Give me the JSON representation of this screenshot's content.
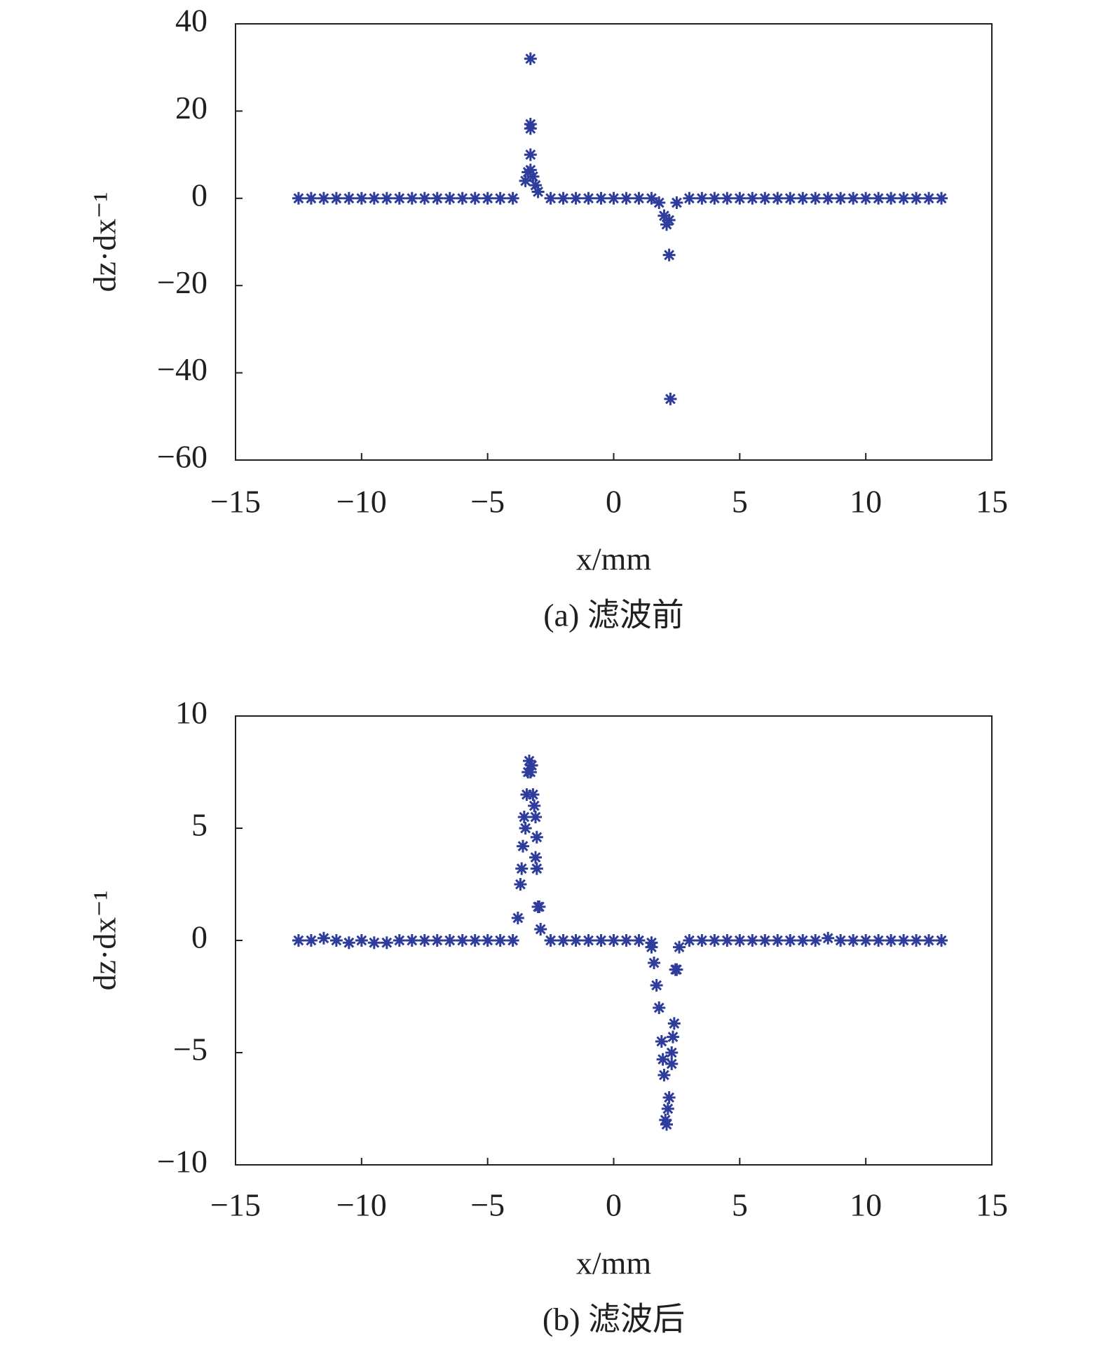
{
  "chart_data": [
    {
      "type": "scatter",
      "caption": "(a) 滤波前",
      "xlabel": "x/mm",
      "ylabel": "dz·dx⁻¹",
      "color": "#2e3c9c",
      "marker": "asterisk",
      "x": [
        -12.5,
        -12,
        -11.5,
        -11,
        -10.5,
        -10,
        -9.5,
        -9,
        -8.5,
        -8,
        -7.5,
        -7,
        -6.5,
        -6,
        -5.5,
        -5,
        -4.5,
        -4,
        -3.5,
        -3,
        -2.5,
        -2,
        -1.5,
        -1,
        -0.5,
        0,
        0.5,
        1,
        1.5,
        2,
        2.5,
        3,
        3.5,
        4,
        4.5,
        5,
        5.5,
        6,
        6.5,
        7,
        7.5,
        8,
        8.5,
        9,
        9.5,
        10,
        10.5,
        11,
        11.5,
        12,
        12.5,
        13,
        -3.4,
        -3.3,
        -3.2,
        -3.3,
        -3.3,
        -3.3,
        -3.3,
        -3.1,
        1.8,
        2.1,
        2.2,
        2.2,
        2.25
      ],
      "values": [
        0,
        0,
        0,
        0,
        0,
        0,
        0,
        0,
        0,
        0,
        0,
        0,
        0,
        0,
        0,
        0,
        0,
        0,
        4,
        1.5,
        0,
        0,
        0,
        0,
        0,
        0,
        0,
        0,
        0,
        -4,
        -1,
        0,
        0,
        0,
        0,
        0,
        0,
        0,
        0,
        0,
        0,
        0,
        0,
        0,
        0,
        0,
        0,
        0,
        0,
        0,
        0,
        0,
        6,
        6.5,
        5,
        10,
        17,
        16,
        32,
        3,
        -1,
        -6,
        -5,
        -13,
        -46
      ],
      "xlim": [
        -15,
        15
      ],
      "xticks": [
        {
          "value": -15,
          "label": "−15"
        },
        {
          "value": -10,
          "label": "−10"
        },
        {
          "value": -5,
          "label": "−5"
        },
        0,
        5,
        10,
        15
      ],
      "ylim": [
        -60,
        40
      ],
      "yticks": [
        {
          "value": -60,
          "label": "−60"
        },
        {
          "value": -40,
          "label": "−40"
        },
        {
          "value": -20,
          "label": "−20"
        },
        0,
        20,
        40
      ]
    },
    {
      "type": "scatter",
      "caption": "(b) 滤波后",
      "xlabel": "x/mm",
      "ylabel": "dz·dx⁻¹",
      "color": "#2e3c9c",
      "marker": "asterisk",
      "x": [
        -12.5,
        -12,
        -11.5,
        -11,
        -10.5,
        -10,
        -9.5,
        -9,
        -8.5,
        -8,
        -7.5,
        -7,
        -6.5,
        -6,
        -5.5,
        -5,
        -4.5,
        -4,
        -3.5,
        -3,
        -2.5,
        -2,
        -1.5,
        -1,
        -0.5,
        0,
        0.5,
        1,
        1.5,
        2,
        2.5,
        3,
        3.5,
        4,
        4.5,
        5,
        5.5,
        6,
        6.5,
        7,
        7.5,
        8,
        8.5,
        9,
        9.5,
        10,
        10.5,
        11,
        11.5,
        12,
        12.5,
        13,
        -3.8,
        -3.7,
        -3.65,
        -3.6,
        -3.55,
        -3.45,
        -3.4,
        -3.35,
        -3.3,
        -3.25,
        -3.2,
        -3.15,
        -3.1,
        -3.05,
        -3.1,
        -3.05,
        -2.95,
        -2.9,
        1.5,
        1.6,
        1.7,
        1.8,
        1.9,
        1.95,
        2.05,
        2.1,
        2.15,
        2.2,
        2.3,
        2.35,
        2.4,
        2.3,
        2.45,
        2.6
      ],
      "values": [
        0,
        0,
        0.1,
        0,
        -0.1,
        0,
        -0.1,
        -0.1,
        0,
        0,
        0,
        0,
        0,
        0,
        0,
        0,
        0,
        0,
        5,
        1.5,
        0,
        0,
        0,
        0,
        0,
        0,
        0,
        0,
        -0.1,
        -6,
        -1.3,
        0,
        0,
        0,
        0,
        0,
        0,
        0,
        0,
        0,
        0,
        0,
        0.1,
        0,
        0,
        0,
        0,
        0,
        0,
        0,
        0,
        0,
        1,
        2.5,
        3.2,
        4.2,
        5.5,
        6.5,
        7.5,
        8,
        7.5,
        7.8,
        6.5,
        6,
        5.5,
        4.6,
        3.7,
        3.2,
        1.5,
        0.5,
        -0.3,
        -1,
        -2,
        -3,
        -4.5,
        -5.3,
        -8,
        -8.2,
        -7.5,
        -7,
        -5,
        -4.3,
        -3.7,
        -5.5,
        -1.3,
        -0.3
      ],
      "xlim": [
        -15,
        15
      ],
      "xticks": [
        {
          "value": -15,
          "label": "−15"
        },
        {
          "value": -10,
          "label": "−10"
        },
        {
          "value": -5,
          "label": "−5"
        },
        0,
        5,
        10,
        15
      ],
      "ylim": [
        -10,
        10
      ],
      "yticks": [
        {
          "value": -10,
          "label": "−10"
        },
        {
          "value": -5,
          "label": "−5"
        },
        0,
        5,
        10
      ]
    }
  ]
}
